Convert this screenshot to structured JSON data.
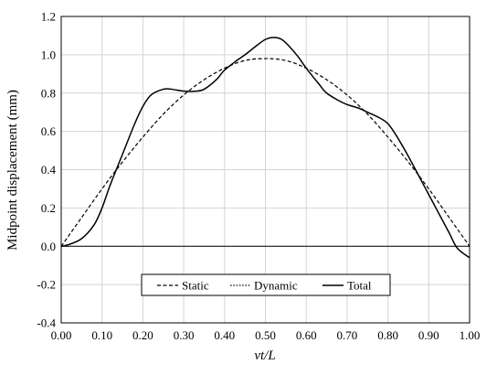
{
  "chart_data": {
    "type": "line",
    "title": "",
    "xlabel": "vt/L",
    "ylabel": "Midpoint displacement (mm)",
    "xlim": [
      0,
      1
    ],
    "ylim": [
      -0.4,
      1.2
    ],
    "x_ticks": [
      "0.00",
      "0.10",
      "0.20",
      "0.30",
      "0.40",
      "0.50",
      "0.60",
      "0.70",
      "0.80",
      "0.90",
      "1.00"
    ],
    "y_ticks": [
      "-0.4",
      "-0.2",
      "0.0",
      "0.2",
      "0.4",
      "0.6",
      "0.8",
      "1.0",
      "1.2"
    ],
    "grid": true,
    "legend_position": "bottom-center",
    "series": [
      {
        "name": "Static",
        "style": "dashed",
        "x": [
          0,
          0.05,
          0.1,
          0.15,
          0.2,
          0.25,
          0.3,
          0.35,
          0.4,
          0.45,
          0.5,
          0.55,
          0.6,
          0.65,
          0.7,
          0.75,
          0.8,
          0.85,
          0.9,
          0.95,
          1
        ],
        "y": [
          0,
          0.15,
          0.3,
          0.44,
          0.57,
          0.69,
          0.79,
          0.87,
          0.93,
          0.97,
          0.98,
          0.97,
          0.93,
          0.87,
          0.79,
          0.69,
          0.57,
          0.44,
          0.3,
          0.15,
          0
        ]
      },
      {
        "name": "Dynamic",
        "style": "dotted",
        "x": [],
        "y": []
      },
      {
        "name": "Total",
        "style": "solid",
        "x": [
          0,
          0.02,
          0.05,
          0.08,
          0.1,
          0.12,
          0.15,
          0.18,
          0.2,
          0.22,
          0.25,
          0.27,
          0.3,
          0.33,
          0.35,
          0.38,
          0.4,
          0.43,
          0.45,
          0.48,
          0.5,
          0.52,
          0.54,
          0.56,
          0.58,
          0.6,
          0.63,
          0.65,
          0.68,
          0.7,
          0.73,
          0.75,
          0.78,
          0.8,
          0.82,
          0.85,
          0.88,
          0.9,
          0.92,
          0.95,
          0.97,
          1
        ],
        "y": [
          0,
          0.01,
          0.04,
          0.11,
          0.2,
          0.32,
          0.48,
          0.64,
          0.73,
          0.79,
          0.82,
          0.82,
          0.81,
          0.81,
          0.82,
          0.87,
          0.92,
          0.97,
          1.0,
          1.05,
          1.08,
          1.09,
          1.08,
          1.04,
          0.99,
          0.93,
          0.85,
          0.8,
          0.76,
          0.74,
          0.72,
          0.7,
          0.67,
          0.64,
          0.58,
          0.47,
          0.35,
          0.27,
          0.19,
          0.07,
          -0.01,
          -0.06
        ]
      }
    ]
  }
}
